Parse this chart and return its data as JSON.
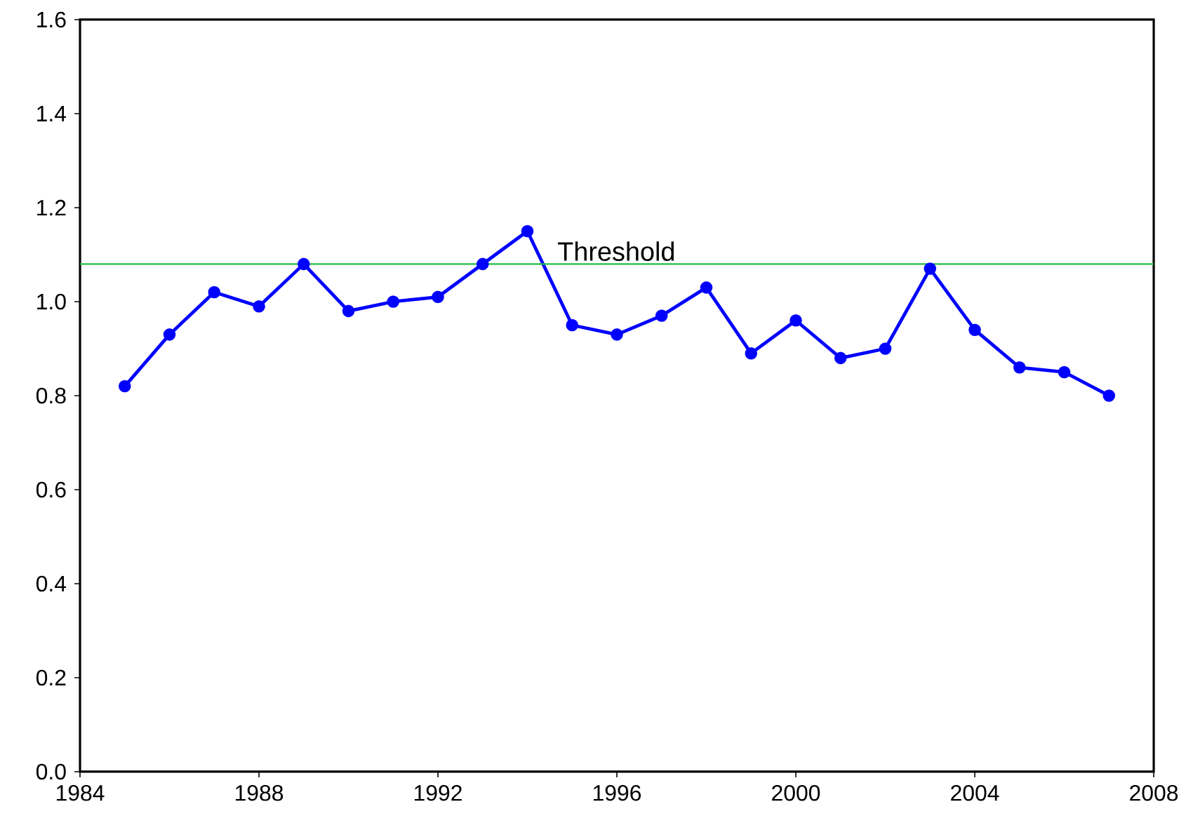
{
  "chart_data": {
    "type": "line",
    "x": [
      1985,
      1986,
      1987,
      1988,
      1989,
      1990,
      1991,
      1992,
      1993,
      1994,
      1995,
      1996,
      1997,
      1998,
      1999,
      2000,
      2001,
      2002,
      2003,
      2004,
      2005,
      2006,
      2007
    ],
    "series": [
      {
        "color": "#0000ff",
        "values": [
          0.82,
          0.93,
          1.02,
          0.99,
          1.08,
          0.98,
          1.0,
          1.01,
          1.08,
          1.15,
          0.95,
          0.93,
          0.97,
          1.03,
          0.89,
          0.96,
          0.88,
          0.9,
          1.07,
          0.94,
          0.86,
          0.85,
          0.8
        ]
      }
    ],
    "xlim": [
      1984,
      2008
    ],
    "xticks": [
      1984,
      1988,
      1992,
      1996,
      2000,
      2004,
      2008
    ],
    "ylim": [
      0,
      1.6
    ],
    "yticks": [
      {
        "value": 0,
        "label": "0.0"
      },
      {
        "value": 0.2,
        "label": "0.2"
      },
      {
        "value": 0.4,
        "label": "0.4"
      },
      {
        "value": 0.6,
        "label": "0.6"
      },
      {
        "value": 0.8,
        "label": "0.8"
      },
      {
        "value": 1.0,
        "label": "1.0"
      },
      {
        "value": 1.2,
        "label": "1.2"
      },
      {
        "value": 1.4,
        "label": "1.4"
      },
      {
        "value": 1.6,
        "label": "1.6"
      }
    ],
    "ref_lines": [
      {
        "axis": "y",
        "value": 1.08,
        "label": "Threshold",
        "color": "#22bb44"
      }
    ],
    "marker": "circle",
    "line_style": "solid",
    "grid": false
  }
}
